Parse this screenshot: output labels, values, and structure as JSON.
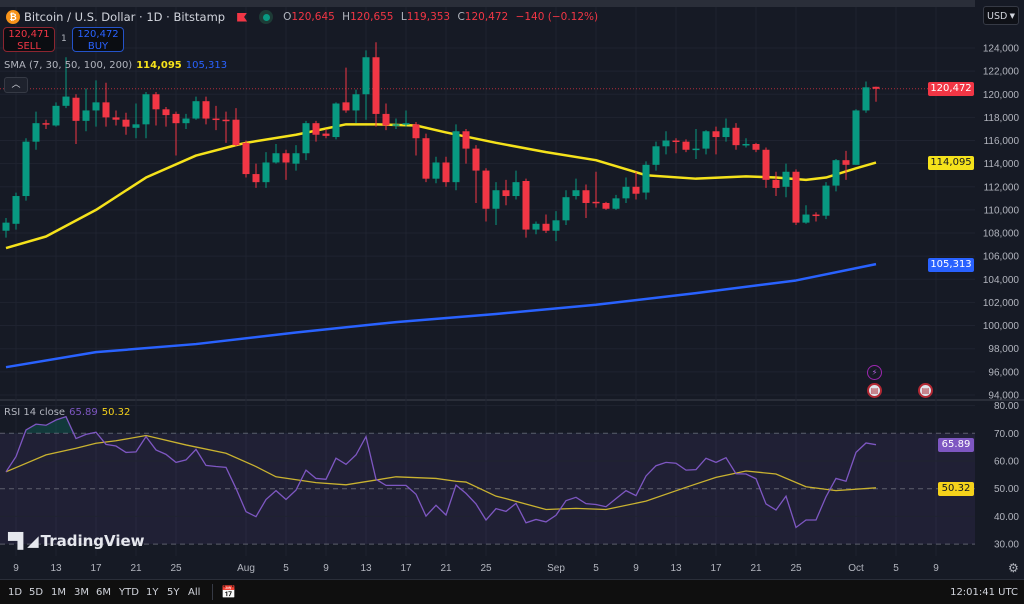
{
  "header": {
    "title": "Bitcoin / U.S. Dollar · 1D · Bitstamp",
    "coin_icon": "bitcoin-icon",
    "o_label": "O",
    "o_value": "120,645",
    "h_label": "H",
    "h_value": "120,655",
    "l_label": "L",
    "l_value": "119,353",
    "c_label": "C",
    "c_value": "120,472",
    "change": "−140 (−0.12%)"
  },
  "trade": {
    "sell_price": "120,471",
    "sell_label": "SELL",
    "quantity": "1",
    "buy_price": "120,472",
    "buy_label": "BUY"
  },
  "sma_legend": {
    "label": "SMA (7, 30, 50, 100, 200)",
    "value_50": "114,095",
    "value_200": "105,313"
  },
  "rsi_legend": {
    "label": "RSI 14 close",
    "rsi_value": "65.89",
    "ma_value": "50.32"
  },
  "currency": "USD",
  "colors": {
    "up": "#089981",
    "down": "#f23645",
    "sma50": "#f5e21b",
    "sma200": "#2962ff",
    "rsi": "#7e57c2",
    "rsi_ma": "#c9b230",
    "background": "#161a25"
  },
  "price_axis": {
    "labels": [
      "124,000",
      "122,000",
      "120,000",
      "118,000",
      "116,000",
      "114,000",
      "112,000",
      "110,000",
      "108,000",
      "106,000",
      "104,000",
      "102,000",
      "100,000",
      "98,000",
      "96,000",
      "94,000"
    ],
    "last_price": "120,472",
    "sma50_tag": "114,095",
    "sma200_tag": "105,313"
  },
  "rsi_axis": {
    "labels": [
      "80.00",
      "70.00",
      "60.00",
      "50.00",
      "40.00",
      "30.00"
    ],
    "rsi_tag": "65.89",
    "ma_tag": "50.32"
  },
  "time_axis": {
    "labels": [
      "9",
      "13",
      "17",
      "21",
      "25",
      "Aug",
      "5",
      "9",
      "13",
      "17",
      "21",
      "25",
      "Sep",
      "5",
      "9",
      "13",
      "17",
      "21",
      "25",
      "Oct",
      "5",
      "9"
    ]
  },
  "chart_data": [
    {
      "type": "candlestick",
      "title": "Bitcoin / U.S. Dollar · 1D · Bitstamp",
      "ylim": [
        94000,
        124000
      ],
      "grid": true,
      "columns": [
        "date",
        "open",
        "high",
        "low",
        "close"
      ],
      "candles": [
        [
          "Jul 8",
          108200,
          109300,
          107600,
          108900
        ],
        [
          "Jul 9",
          108800,
          111500,
          108300,
          111200
        ],
        [
          "Jul 10",
          111200,
          116200,
          110800,
          115900
        ],
        [
          "Jul 11",
          115900,
          118500,
          115200,
          117500
        ],
        [
          "Jul 12",
          117500,
          117800,
          117000,
          117400
        ],
        [
          "Jul 13",
          117300,
          119300,
          117200,
          119000
        ],
        [
          "Jul 14",
          119000,
          123200,
          118800,
          119800
        ],
        [
          "Jul 15",
          119700,
          120000,
          115700,
          117700
        ],
        [
          "Jul 16",
          117700,
          120500,
          116800,
          118600
        ],
        [
          "Jul 17",
          118600,
          121200,
          117200,
          119300
        ],
        [
          "Jul 18",
          119300,
          121000,
          117200,
          118000
        ],
        [
          "Jul 19",
          118000,
          118600,
          117300,
          117800
        ],
        [
          "Jul 20",
          117800,
          118400,
          116500,
          117200
        ],
        [
          "Jul 21",
          117100,
          119200,
          116200,
          117400
        ],
        [
          "Jul 22",
          117400,
          120200,
          116200,
          120000
        ],
        [
          "Jul 23",
          120000,
          120200,
          117300,
          118700
        ],
        [
          "Jul 24",
          118700,
          118900,
          117200,
          118200
        ],
        [
          "Jul 25",
          118300,
          118500,
          114700,
          117500
        ],
        [
          "Jul 26",
          117500,
          118300,
          117000,
          117900
        ],
        [
          "Jul 27",
          117900,
          119800,
          117800,
          119400
        ],
        [
          "Jul 28",
          119400,
          119800,
          117400,
          117900
        ],
        [
          "Jul 29",
          117900,
          119000,
          116900,
          117800
        ],
        [
          "Jul 30",
          117800,
          118500,
          115800,
          117700
        ],
        [
          "Jul 31",
          117800,
          118800,
          115500,
          115600
        ],
        [
          "Aug 1",
          115800,
          116000,
          112800,
          113100
        ],
        [
          "Aug 2",
          113100,
          114000,
          111900,
          112400
        ],
        [
          "Aug 3",
          112400,
          115000,
          111900,
          114100
        ],
        [
          "Aug 4",
          114100,
          115700,
          114000,
          114900
        ],
        [
          "Aug 5",
          114900,
          115200,
          112600,
          114100
        ],
        [
          "Aug 6",
          114000,
          115600,
          113400,
          114900
        ],
        [
          "Aug 7",
          114900,
          117700,
          114300,
          117500
        ],
        [
          "Aug 8",
          117500,
          117700,
          115900,
          116500
        ],
        [
          "Aug 9",
          116600,
          117000,
          116200,
          116400
        ],
        [
          "Aug 10",
          116300,
          119300,
          116100,
          119200
        ],
        [
          "Aug 11",
          119300,
          122300,
          118400,
          118600
        ],
        [
          "Aug 12",
          118600,
          120400,
          117500,
          120000
        ],
        [
          "Aug 13",
          120000,
          123800,
          117800,
          123200
        ],
        [
          "Aug 14",
          123200,
          124500,
          117200,
          118300
        ],
        [
          "Aug 15",
          118300,
          119200,
          116900,
          117300
        ],
        [
          "Aug 16",
          117300,
          117900,
          117000,
          117400
        ],
        [
          "Aug 17",
          117400,
          118600,
          117200,
          117500
        ],
        [
          "Aug 18",
          117400,
          117600,
          114700,
          116200
        ],
        [
          "Aug 19",
          116200,
          116600,
          112400,
          112700
        ],
        [
          "Aug 20",
          112700,
          114600,
          112300,
          114100
        ],
        [
          "Aug 21",
          114100,
          114600,
          112000,
          112400
        ],
        [
          "Aug 22",
          112400,
          117400,
          111700,
          116800
        ],
        [
          "Aug 23",
          116800,
          117000,
          114000,
          115300
        ],
        [
          "Aug 24",
          115300,
          115600,
          110600,
          113400
        ],
        [
          "Aug 25",
          113400,
          113600,
          109000,
          110100
        ],
        [
          "Aug 26",
          110100,
          112400,
          108700,
          111700
        ],
        [
          "Aug 27",
          111700,
          112600,
          110400,
          111200
        ],
        [
          "Aug 28",
          111200,
          113400,
          110900,
          112400
        ],
        [
          "Aug 29",
          112500,
          112700,
          107600,
          108300
        ],
        [
          "Aug 30",
          108300,
          109000,
          107900,
          108800
        ],
        [
          "Aug 31",
          108800,
          109600,
          108000,
          108200
        ],
        [
          "Sep 1",
          108200,
          109900,
          107300,
          109100
        ],
        [
          "Sep 2",
          109100,
          111700,
          108700,
          111100
        ],
        [
          "Sep 3",
          111200,
          112700,
          110900,
          111700
        ],
        [
          "Sep 4",
          111700,
          112200,
          109300,
          110600
        ],
        [
          "Sep 5",
          110700,
          113300,
          110200,
          110600
        ],
        [
          "Sep 6",
          110600,
          110700,
          110000,
          110100
        ],
        [
          "Sep 7",
          110100,
          111300,
          110000,
          111000
        ],
        [
          "Sep 8",
          111000,
          112800,
          110600,
          112000
        ],
        [
          "Sep 9",
          112000,
          113300,
          110900,
          111400
        ],
        [
          "Sep 10",
          111500,
          114200,
          110900,
          113900
        ],
        [
          "Sep 11",
          113900,
          115900,
          113400,
          115500
        ],
        [
          "Sep 12",
          115500,
          116800,
          114800,
          116000
        ],
        [
          "Sep 13",
          116000,
          116200,
          114900,
          115900
        ],
        [
          "Sep 14",
          115900,
          116100,
          115000,
          115200
        ],
        [
          "Sep 15",
          115200,
          117000,
          114400,
          115300
        ],
        [
          "Sep 16",
          115300,
          116900,
          114800,
          116800
        ],
        [
          "Sep 17",
          116800,
          117200,
          114800,
          116300
        ],
        [
          "Sep 18",
          116300,
          117900,
          115900,
          117100
        ],
        [
          "Sep 19",
          117100,
          117500,
          115200,
          115600
        ],
        [
          "Sep 20",
          115600,
          116200,
          115400,
          115700
        ],
        [
          "Sep 21",
          115700,
          115800,
          115000,
          115200
        ],
        [
          "Sep 22",
          115200,
          115400,
          111900,
          112600
        ],
        [
          "Sep 23",
          112600,
          113300,
          111200,
          111900
        ],
        [
          "Sep 24",
          112000,
          114000,
          111100,
          113300
        ],
        [
          "Sep 25",
          113300,
          113500,
          108700,
          108900
        ],
        [
          "Sep 26",
          108900,
          110400,
          108800,
          109600
        ],
        [
          "Sep 27",
          109600,
          109800,
          109000,
          109500
        ],
        [
          "Sep 28",
          109500,
          112400,
          109200,
          112100
        ],
        [
          "Sep 29",
          112100,
          114400,
          111600,
          114300
        ],
        [
          "Sep 30",
          114300,
          115100,
          112600,
          113900
        ],
        [
          "Oct 1",
          113900,
          118700,
          113900,
          118600
        ],
        [
          "Oct 2",
          118600,
          121100,
          118400,
          120600
        ],
        [
          "Oct 3",
          120645,
          120655,
          119353,
          120472
        ]
      ],
      "series": [
        {
          "name": "SMA 50",
          "points": [
            [
              "Jul 8",
              106700
            ],
            [
              "Jul 12",
              107700
            ],
            [
              "Jul 17",
              110000
            ],
            [
              "Jul 22",
              112800
            ],
            [
              "Jul 27",
              114700
            ],
            [
              "Jul 31",
              115600
            ],
            [
              "Aug 1",
              115800
            ],
            [
              "Aug 6",
              116500
            ],
            [
              "Aug 11",
              117400
            ],
            [
              "Aug 14",
              117400
            ],
            [
              "Aug 18",
              117300
            ],
            [
              "Aug 21",
              116700
            ],
            [
              "Aug 26",
              115800
            ],
            [
              "Aug 31",
              115000
            ],
            [
              "Sep 5",
              114300
            ],
            [
              "Sep 10",
              113000
            ],
            [
              "Sep 15",
              112700
            ],
            [
              "Sep 20",
              112900
            ],
            [
              "Sep 23",
              112800
            ],
            [
              "Sep 26",
              112600
            ],
            [
              "Sep 28",
              112800
            ],
            [
              "Oct 1",
              113600
            ],
            [
              "Oct 3",
              114095
            ]
          ]
        },
        {
          "name": "SMA 200",
          "points": [
            [
              "Jul 8",
              96400
            ],
            [
              "Jul 17",
              97700
            ],
            [
              "Jul 27",
              98400
            ],
            [
              "Aug 6",
              99400
            ],
            [
              "Aug 16",
              100300
            ],
            [
              "Aug 26",
              101000
            ],
            [
              "Sep 5",
              101800
            ],
            [
              "Sep 15",
              102800
            ],
            [
              "Sep 25",
              103900
            ],
            [
              "Oct 3",
              105313
            ]
          ]
        }
      ]
    },
    {
      "type": "line",
      "title": "RSI 14 close",
      "ylim": [
        25,
        82
      ],
      "bands": [
        30,
        50,
        70
      ],
      "grid": true,
      "series": [
        {
          "name": "RSI",
          "values": [
            56.1,
            61.6,
            71.2,
            73.3,
            72.9,
            74.8,
            76.0,
            68.1,
            69.6,
            70.4,
            66.0,
            65.4,
            63.1,
            63.3,
            68.8,
            64.0,
            62.4,
            59.5,
            60.4,
            64.2,
            58.4,
            58.0,
            57.7,
            50.1,
            41.7,
            39.9,
            46.1,
            49.3,
            46.1,
            49.5,
            56.7,
            53.7,
            53.4,
            61.0,
            58.8,
            62.2,
            68.8,
            53.4,
            51.2,
            51.2,
            51.2,
            48.0,
            40.1,
            44.0,
            40.5,
            51.3,
            48.3,
            44.5,
            38.7,
            42.8,
            41.8,
            44.7,
            37.7,
            38.9,
            38.0,
            40.4,
            45.7,
            46.9,
            44.6,
            44.3,
            43.5,
            46.4,
            49.3,
            47.5,
            54.6,
            58.3,
            59.5,
            59.2,
            56.7,
            56.9,
            61.0,
            59.5,
            61.2,
            55.4,
            55.3,
            53.6,
            44.5,
            42.3,
            47.3,
            36.0,
            38.7,
            38.7,
            47.1,
            53.7,
            52.7,
            63.1,
            66.5,
            65.89
          ]
        },
        {
          "name": "RSI MA",
          "points": [
            [
              "Jul 8",
              56.1
            ],
            [
              "Jul 12",
              62.2
            ],
            [
              "Jul 15",
              64.6
            ],
            [
              "Jul 17",
              66.4
            ],
            [
              "Jul 19",
              67.3
            ],
            [
              "Jul 22",
              69.2
            ],
            [
              "Jul 26",
              65.8
            ],
            [
              "Jul 30",
              62.8
            ],
            [
              "Aug 2",
              58.0
            ],
            [
              "Aug 4",
              54.3
            ],
            [
              "Aug 8",
              52.2
            ],
            [
              "Aug 11",
              51.4
            ],
            [
              "Aug 16",
              54.3
            ],
            [
              "Aug 20",
              53.7
            ],
            [
              "Aug 22",
              52.7
            ],
            [
              "Aug 23",
              52.4
            ],
            [
              "Aug 26",
              47.3
            ],
            [
              "Aug 27",
              46.4
            ],
            [
              "Aug 31",
              42.5
            ],
            [
              "Sep 3",
              42.9
            ],
            [
              "Sep 6",
              42.5
            ],
            [
              "Sep 10",
              45.5
            ],
            [
              "Sep 14",
              50.5
            ],
            [
              "Sep 17",
              54.1
            ],
            [
              "Sep 20",
              56.4
            ],
            [
              "Sep 23",
              55.3
            ],
            [
              "Sep 26",
              50.7
            ],
            [
              "Sep 29",
              49.3
            ],
            [
              "Oct 3",
              50.32
            ]
          ]
        }
      ]
    }
  ],
  "watermark": "TradingView",
  "toolbar": {
    "ranges": [
      "1D",
      "5D",
      "1M",
      "3M",
      "6M",
      "YTD",
      "1Y",
      "5Y",
      "All"
    ],
    "clock": "12:01:41 UTC"
  }
}
